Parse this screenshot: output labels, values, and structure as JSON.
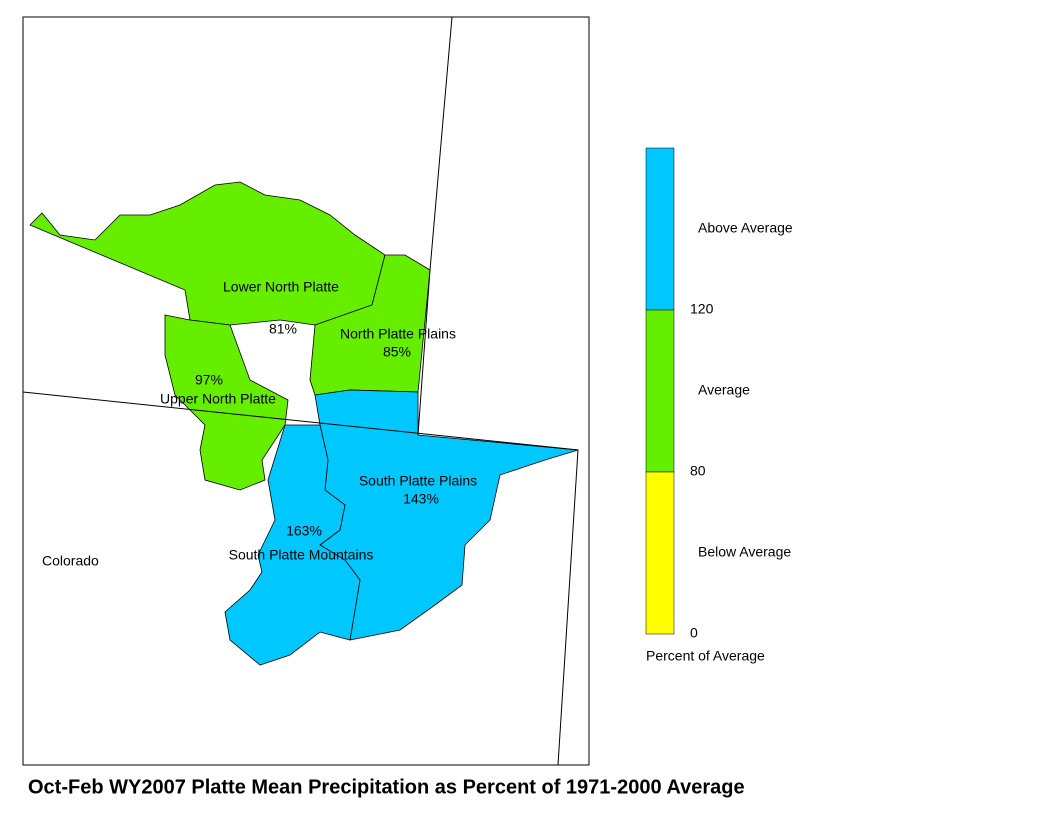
{
  "map": {
    "title": "Oct-Feb WY2007 Platte Mean Precipitation as Percent of 1971-2000 Average",
    "state_label": "Colorado",
    "regions": [
      {
        "name": "Lower North Platte",
        "label": "81%",
        "color": "#66ee00"
      },
      {
        "name": "North Platte Plains",
        "label": "85%",
        "color": "#66ee00"
      },
      {
        "name": "Upper North Platte",
        "label": "97%",
        "color": "#66ee00"
      },
      {
        "name": "South Platte Plains",
        "label": "143%",
        "color": "#00c8ff"
      },
      {
        "name": "South Platte Mountains",
        "label": "163%",
        "color": "#00c8ff"
      }
    ],
    "legend": {
      "title": "Percent of Average",
      "classes": [
        {
          "label": "Above Average",
          "color": "#00c8ff"
        },
        {
          "label": "Average",
          "color": "#66ee00"
        },
        {
          "label": "Below Average",
          "color": "#ffff00"
        }
      ],
      "ticks": [
        120,
        80,
        0
      ]
    }
  }
}
